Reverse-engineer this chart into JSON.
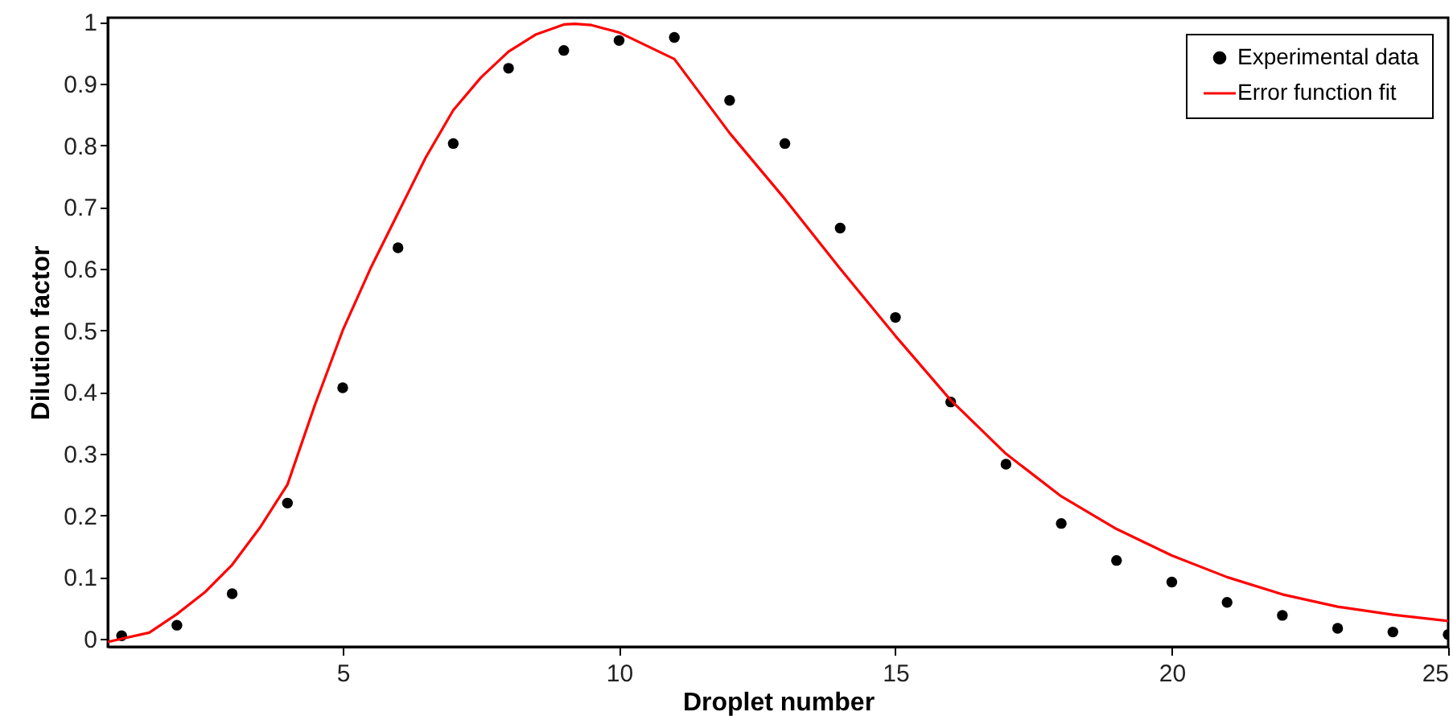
{
  "chart_data": {
    "type": "scatter",
    "xlabel": "Droplet number",
    "ylabel": "Dilution factor",
    "xlim": [
      0.75,
      25
    ],
    "ylim": [
      -0.013,
      1.007
    ],
    "xticks": [
      5,
      10,
      15,
      20,
      25
    ],
    "yticks": [
      0,
      0.1,
      0.2,
      0.3,
      0.4,
      0.5,
      0.6,
      0.7,
      0.8,
      0.9,
      1
    ],
    "legend": "top right",
    "grid": false,
    "series": [
      {
        "name": "Experimental data",
        "marker": "circle",
        "color": "#000000",
        "x": [
          1,
          2,
          3,
          4,
          5,
          6,
          7,
          8,
          9,
          10,
          11,
          12,
          13,
          14,
          15,
          16,
          17,
          18,
          19,
          20,
          21,
          22,
          23,
          24,
          25
        ],
        "values": [
          0.005,
          0.022,
          0.073,
          0.22,
          0.407,
          0.634,
          0.803,
          0.925,
          0.954,
          0.97,
          0.975,
          0.873,
          0.803,
          0.666,
          0.521,
          0.384,
          0.283,
          0.187,
          0.127,
          0.092,
          0.059,
          0.038,
          0.017,
          0.011,
          0.007
        ]
      },
      {
        "name": "Error function fit",
        "type": "line",
        "color": "#ff0000",
        "line_style": "solid",
        "x": [
          0.75,
          1,
          1.5,
          2,
          2.5,
          3,
          3.5,
          4,
          4.5,
          5,
          5.5,
          6,
          6.5,
          7,
          7.5,
          8,
          8.5,
          9,
          9.2,
          9.5,
          10,
          11,
          12,
          13,
          14,
          15,
          16,
          17,
          18,
          19,
          20,
          21,
          22,
          23,
          24,
          25
        ],
        "values": [
          -0.005,
          0,
          0.01,
          0.04,
          0.075,
          0.12,
          0.18,
          0.25,
          0.38,
          0.5,
          0.6,
          0.69,
          0.78,
          0.857,
          0.91,
          0.952,
          0.98,
          0.996,
          0.997,
          0.995,
          0.983,
          0.94,
          0.82,
          0.713,
          0.6,
          0.491,
          0.387,
          0.3,
          0.231,
          0.178,
          0.135,
          0.1,
          0.072,
          0.052,
          0.039,
          0.029
        ]
      }
    ]
  }
}
